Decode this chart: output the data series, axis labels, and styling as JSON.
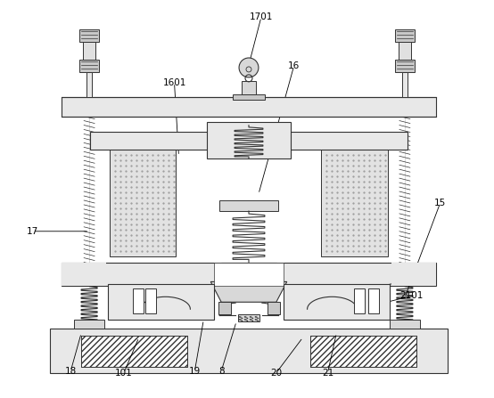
{
  "background_color": "#ffffff",
  "line_color": "#333333",
  "fill_gray": "#d8d8d8",
  "fill_light": "#e8e8e8",
  "fill_mid": "#c8c8c8"
}
